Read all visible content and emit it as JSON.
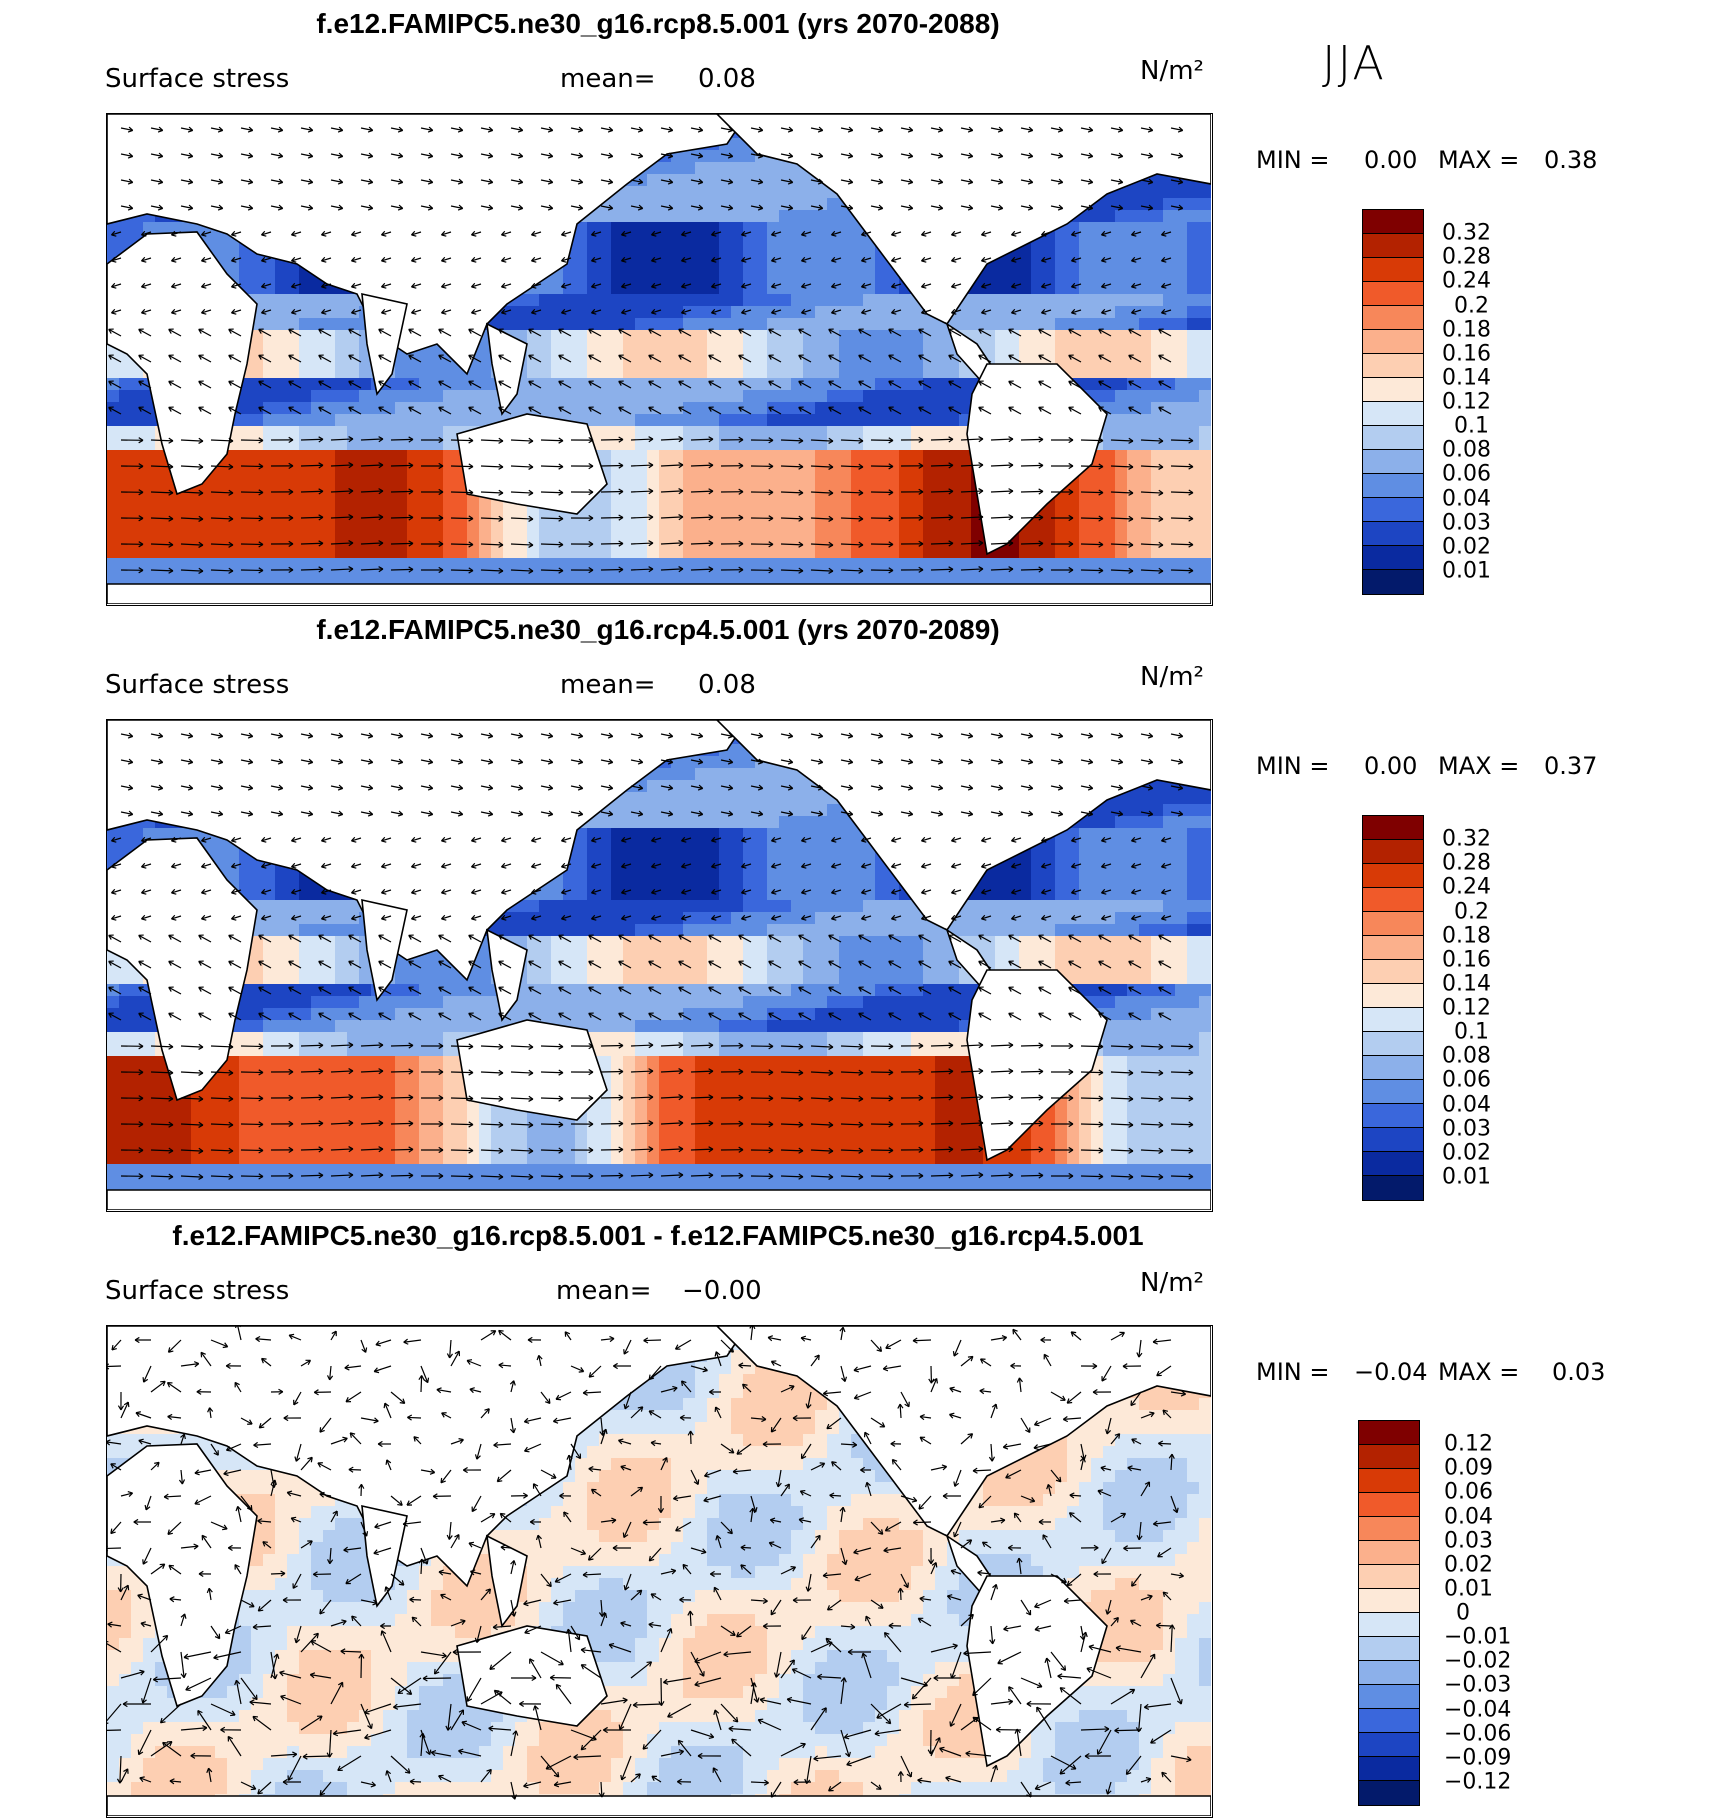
{
  "season": "JJA",
  "chart_data": [
    {
      "type": "heatmap",
      "title": "f.e12.FAMIPC5.ne30_g16.rcp8.5.001 (yrs 2070-2088)",
      "variable": "Surface stress",
      "mean_label": "mean=",
      "mean_value": "0.08",
      "units": "N/m²",
      "min_label": "MIN =",
      "min_value": "0.00",
      "max_label": "MAX =",
      "max_value": "0.38",
      "colorbar_levels": [
        "0.32",
        "0.28",
        "0.24",
        "0.2",
        "0.18",
        "0.16",
        "0.14",
        "0.12",
        "0.1",
        "0.08",
        "0.06",
        "0.04",
        "0.03",
        "0.02",
        "0.01"
      ],
      "colorbar_colors": [
        "#7f0000",
        "#b32200",
        "#d83a06",
        "#f05a2a",
        "#f7875a",
        "#fbb08c",
        "#fdcfb2",
        "#fde9d8",
        "#d6e6f7",
        "#b3cdf0",
        "#8cb0ea",
        "#5f8ee3",
        "#3a67dc",
        "#1d45c3",
        "#0a2aa0",
        "#031a6b"
      ],
      "vector_field": "wind stress vectors"
    },
    {
      "type": "heatmap",
      "title": "f.e12.FAMIPC5.ne30_g16.rcp4.5.001 (yrs 2070-2089)",
      "variable": "Surface stress",
      "mean_label": "mean=",
      "mean_value": "0.08",
      "units": "N/m²",
      "min_label": "MIN =",
      "min_value": "0.00",
      "max_label": "MAX =",
      "max_value": "0.37",
      "colorbar_levels": [
        "0.32",
        "0.28",
        "0.24",
        "0.2",
        "0.18",
        "0.16",
        "0.14",
        "0.12",
        "0.1",
        "0.08",
        "0.06",
        "0.04",
        "0.03",
        "0.02",
        "0.01"
      ],
      "colorbar_colors": [
        "#7f0000",
        "#b32200",
        "#d83a06",
        "#f05a2a",
        "#f7875a",
        "#fbb08c",
        "#fdcfb2",
        "#fde9d8",
        "#d6e6f7",
        "#b3cdf0",
        "#8cb0ea",
        "#5f8ee3",
        "#3a67dc",
        "#1d45c3",
        "#0a2aa0",
        "#031a6b"
      ],
      "vector_field": "wind stress vectors"
    },
    {
      "type": "heatmap",
      "title": "f.e12.FAMIPC5.ne30_g16.rcp8.5.001 - f.e12.FAMIPC5.ne30_g16.rcp4.5.001",
      "variable": "Surface stress",
      "mean_label": "mean=",
      "mean_value": "−0.00",
      "units": "N/m²",
      "min_label": "MIN =",
      "min_value": "−0.04",
      "max_label": "MAX =",
      "max_value": "0.03",
      "colorbar_levels": [
        "0.12",
        "0.09",
        "0.06",
        "0.04",
        "0.03",
        "0.02",
        "0.01",
        "0",
        "−0.01",
        "−0.02",
        "−0.03",
        "−0.04",
        "−0.06",
        "−0.09",
        "−0.12"
      ],
      "colorbar_colors": [
        "#7f0000",
        "#b32200",
        "#d83a06",
        "#f05a2a",
        "#f7875a",
        "#fbb08c",
        "#fdcfb2",
        "#fde9d8",
        "#d6e6f7",
        "#b3cdf0",
        "#8cb0ea",
        "#5f8ee3",
        "#3a67dc",
        "#1d45c3",
        "#0a2aa0",
        "#031a6b"
      ],
      "vector_field": "wind stress difference vectors"
    }
  ]
}
